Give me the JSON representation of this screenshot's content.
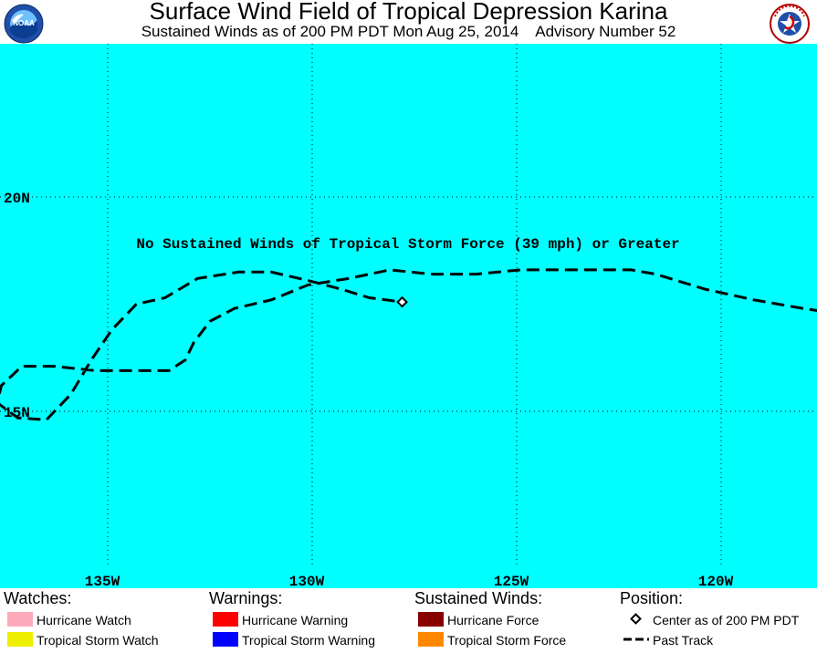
{
  "header": {
    "title": "Surface Wind Field of Tropical Depression Karina",
    "subtitle": "Sustained Winds as of 200 PM PDT Mon Aug 25, 2014    Advisory Number 52",
    "left_logo": "NOAA",
    "right_logo": "National Weather Service"
  },
  "map": {
    "ocean_color": "#00ffff",
    "track_color": "#000000",
    "message": "No Sustained Winds of Tropical Storm Force (39 mph) or Greater",
    "lon_labels": [
      "135W",
      "130W",
      "125W",
      "120W"
    ],
    "lat_labels": [
      "20N",
      "15N"
    ],
    "center": {
      "lat": 17.55,
      "lon": 127.8
    },
    "past_track": [
      {
        "lat": 17.1,
        "lon": 115.2
      },
      {
        "lat": 17.2,
        "lon": 116.6
      },
      {
        "lat": 17.4,
        "lon": 118.0
      },
      {
        "lat": 17.6,
        "lon": 119.2
      },
      {
        "lat": 17.85,
        "lon": 120.4
      },
      {
        "lat": 18.2,
        "lon": 121.6
      },
      {
        "lat": 18.3,
        "lon": 122.2
      },
      {
        "lat": 18.3,
        "lon": 123.7
      },
      {
        "lat": 18.3,
        "lon": 124.9
      },
      {
        "lat": 18.2,
        "lon": 126.0
      },
      {
        "lat": 18.2,
        "lon": 127.1
      },
      {
        "lat": 18.3,
        "lon": 128.1
      },
      {
        "lat": 18.1,
        "lon": 129.1
      },
      {
        "lat": 17.95,
        "lon": 130.1
      },
      {
        "lat": 17.6,
        "lon": 131.0
      },
      {
        "lat": 17.4,
        "lon": 131.9
      },
      {
        "lat": 17.1,
        "lon": 132.5
      },
      {
        "lat": 16.6,
        "lon": 132.9
      },
      {
        "lat": 16.2,
        "lon": 133.1
      },
      {
        "lat": 15.95,
        "lon": 133.5
      },
      {
        "lat": 15.95,
        "lon": 134.3
      },
      {
        "lat": 15.95,
        "lon": 135.3
      },
      {
        "lat": 16.05,
        "lon": 136.3
      },
      {
        "lat": 16.05,
        "lon": 137.1
      },
      {
        "lat": 15.6,
        "lon": 137.6
      },
      {
        "lat": 15.2,
        "lon": 137.7
      },
      {
        "lat": 14.85,
        "lon": 137.2
      },
      {
        "lat": 14.8,
        "lon": 136.5
      },
      {
        "lat": 15.4,
        "lon": 135.9
      },
      {
        "lat": 16.2,
        "lon": 135.4
      },
      {
        "lat": 16.9,
        "lon": 134.9
      },
      {
        "lat": 17.5,
        "lon": 134.3
      },
      {
        "lat": 17.65,
        "lon": 133.6
      },
      {
        "lat": 18.1,
        "lon": 132.8
      },
      {
        "lat": 18.25,
        "lon": 131.8
      },
      {
        "lat": 18.25,
        "lon": 131.0
      },
      {
        "lat": 18.05,
        "lon": 130.1
      },
      {
        "lat": 17.85,
        "lon": 129.3
      },
      {
        "lat": 17.65,
        "lon": 128.6
      },
      {
        "lat": 17.55,
        "lon": 127.8
      }
    ]
  },
  "legend": {
    "watches": {
      "title": "Watches:",
      "items": [
        {
          "label": "Hurricane Watch",
          "color": "#ffaabb"
        },
        {
          "label": "Tropical Storm Watch",
          "color": "#eeee00"
        }
      ]
    },
    "warnings": {
      "title": "Warnings:",
      "items": [
        {
          "label": "Hurricane Warning",
          "color": "#ff0000"
        },
        {
          "label": "Tropical Storm Warning",
          "color": "#0000ff"
        }
      ]
    },
    "winds": {
      "title": "Sustained Winds:",
      "items": [
        {
          "label": "Hurricane Force",
          "color": "#880000"
        },
        {
          "label": "Tropical Storm Force",
          "color": "#ff8800"
        }
      ]
    },
    "position": {
      "title": "Position:",
      "center_label": "Center as of 200 PM PDT",
      "track_label": "Past Track"
    }
  }
}
